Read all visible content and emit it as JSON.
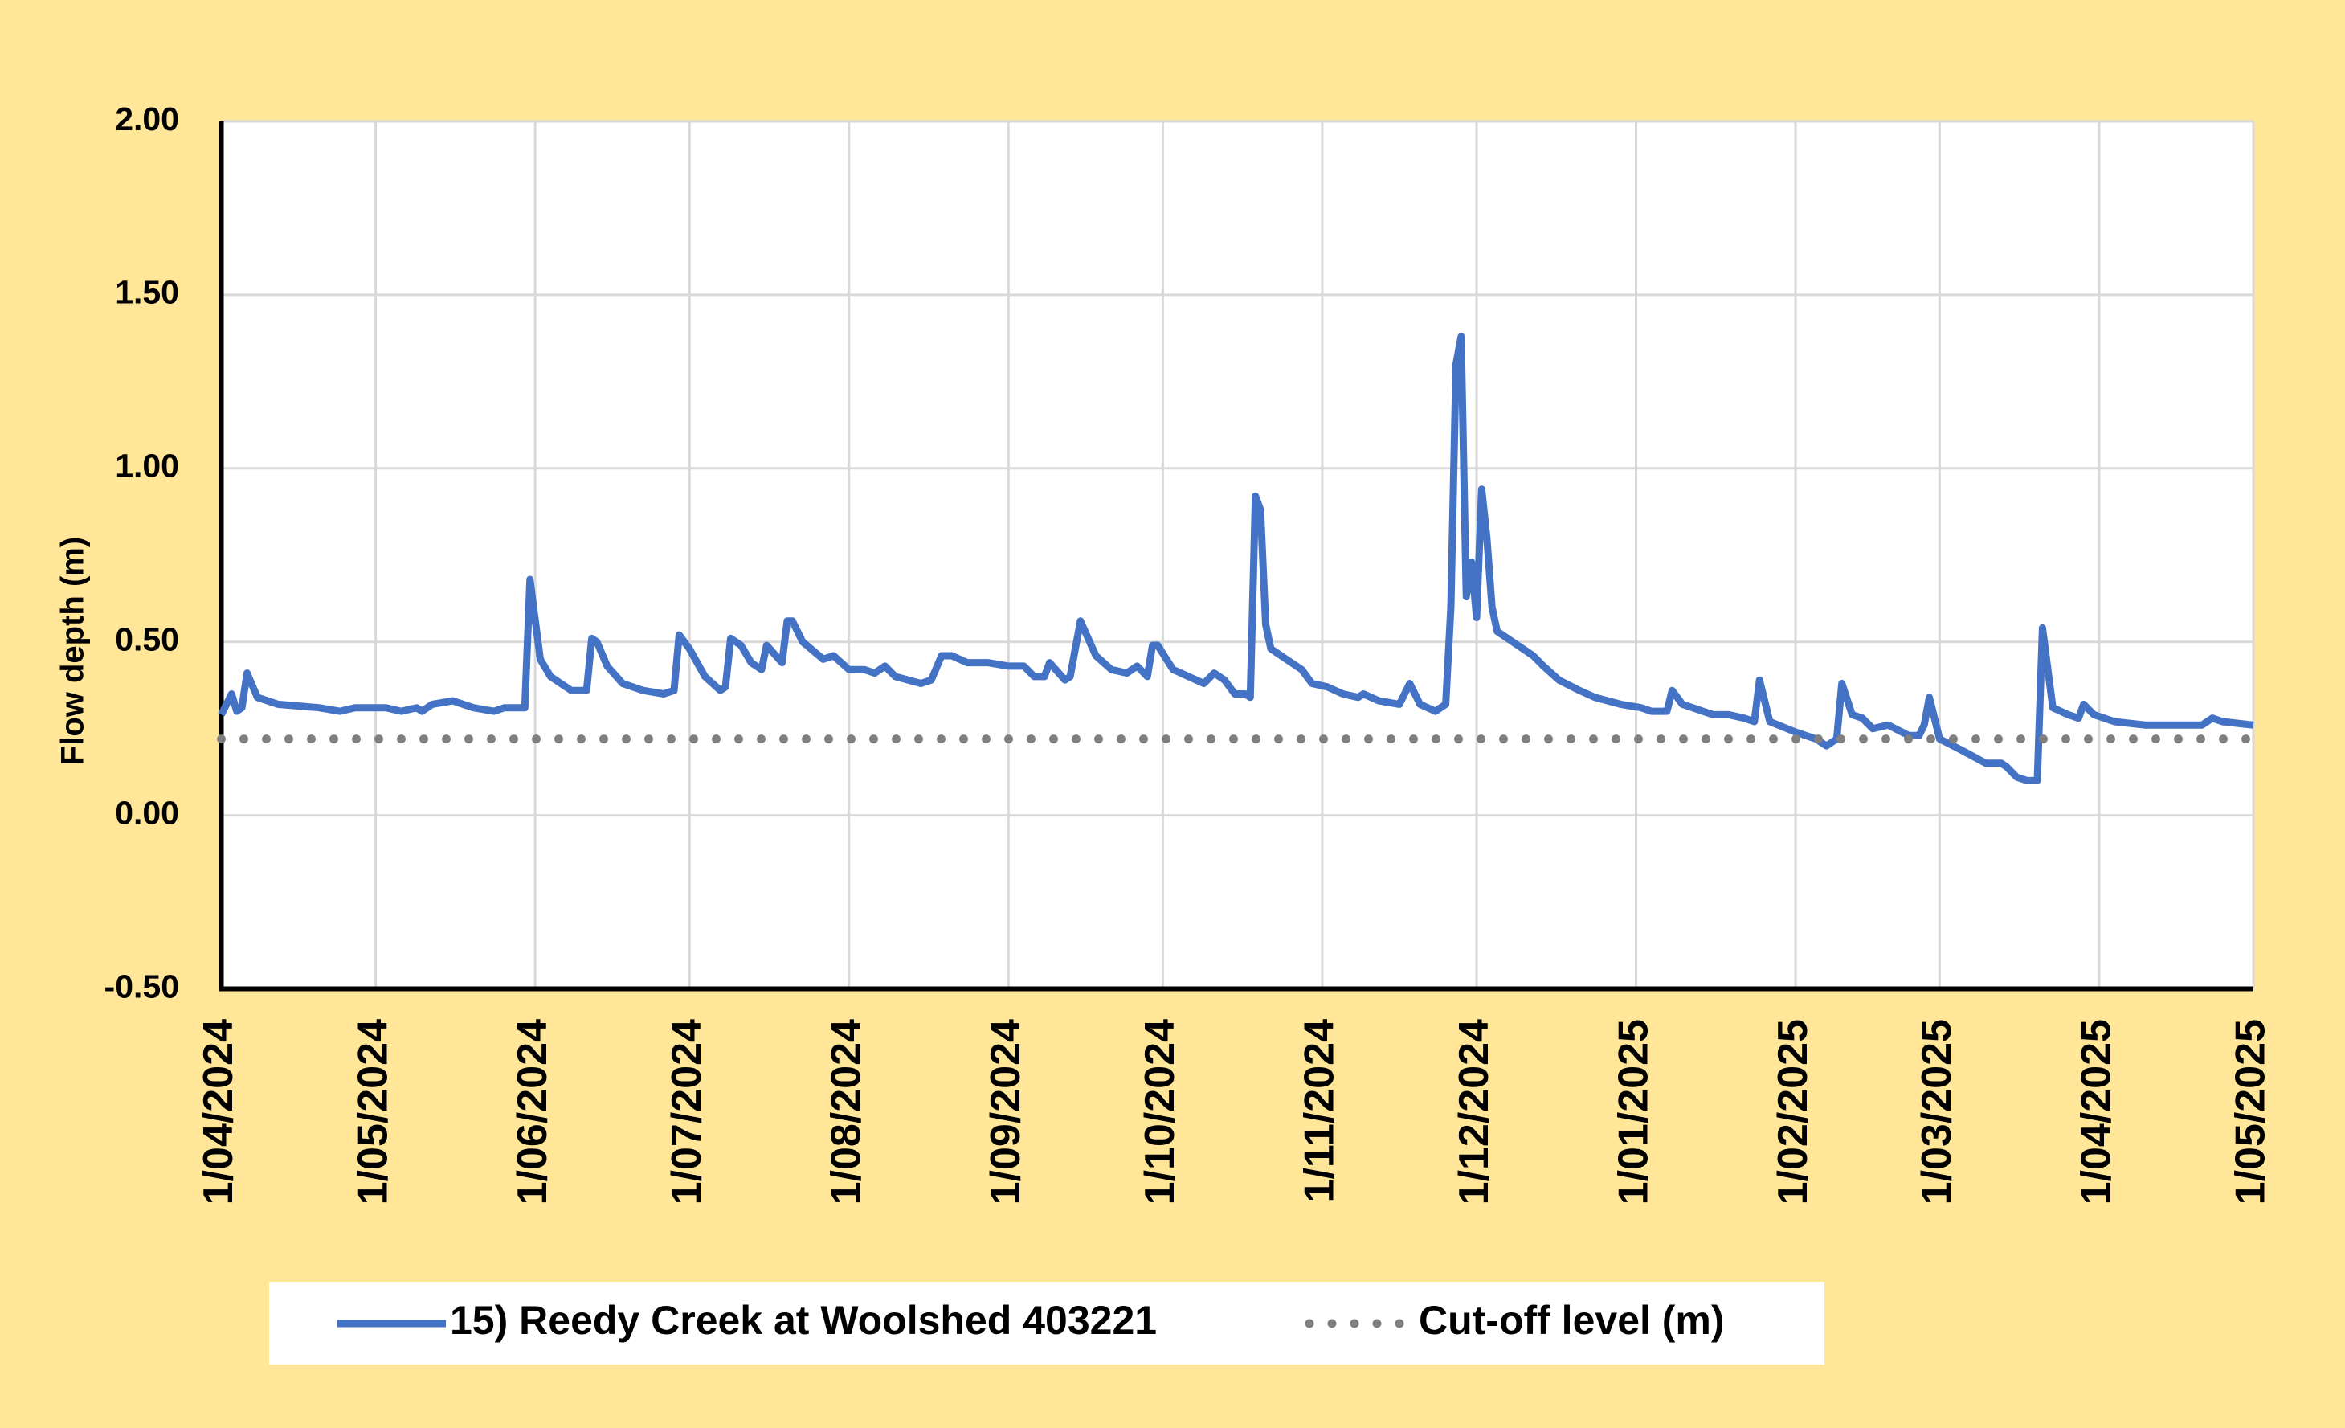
{
  "chart_data": {
    "type": "line",
    "y_label": "Flow depth (m)",
    "ylim": [
      -0.5,
      2
    ],
    "yticks": [
      {
        "value": -0.5,
        "label": "-0.50"
      },
      {
        "value": 0,
        "label": "0.00"
      },
      {
        "value": 0.5,
        "label": "0.50"
      },
      {
        "value": 1,
        "label": "1.00"
      },
      {
        "value": 1.5,
        "label": "1.50"
      },
      {
        "value": 2,
        "label": "2.00"
      }
    ],
    "xlim": [
      "2024-04-01",
      "2025-05-01"
    ],
    "xticks": [
      {
        "value": "2024-04-01",
        "label": "1/04/2024"
      },
      {
        "value": "2024-05-01",
        "label": "1/05/2024"
      },
      {
        "value": "2024-06-01",
        "label": "1/06/2024"
      },
      {
        "value": "2024-07-01",
        "label": "1/07/2024"
      },
      {
        "value": "2024-08-01",
        "label": "1/08/2024"
      },
      {
        "value": "2024-09-01",
        "label": "1/09/2024"
      },
      {
        "value": "2024-10-01",
        "label": "1/10/2024"
      },
      {
        "value": "2024-11-01",
        "label": "1/11/2024"
      },
      {
        "value": "2024-12-01",
        "label": "1/12/2024"
      },
      {
        "value": "2025-01-01",
        "label": "1/01/2025"
      },
      {
        "value": "2025-02-01",
        "label": "1/02/2025"
      },
      {
        "value": "2025-03-01",
        "label": "1/03/2025"
      },
      {
        "value": "2025-04-01",
        "label": "1/04/2025"
      },
      {
        "value": "2025-05-01",
        "label": "1/05/2025"
      }
    ],
    "grid": true,
    "legend": "bottom",
    "series": [
      {
        "name": "15) Reedy Creek at Woolshed 403221",
        "color": "#4472c4",
        "style": "solid",
        "x": [
          "2024-04-01",
          "2024-04-03",
          "2024-04-04",
          "2024-04-05",
          "2024-04-06",
          "2024-04-08",
          "2024-04-12",
          "2024-04-20",
          "2024-04-24",
          "2024-04-27",
          "2024-05-03",
          "2024-05-06",
          "2024-05-09",
          "2024-05-10",
          "2024-05-12",
          "2024-05-16",
          "2024-05-20",
          "2024-05-24",
          "2024-05-26",
          "2024-05-30",
          "2024-05-31",
          "2024-06-02",
          "2024-06-04",
          "2024-06-08",
          "2024-06-11",
          "2024-06-12",
          "2024-06-13",
          "2024-06-15",
          "2024-06-18",
          "2024-06-22",
          "2024-06-26",
          "2024-06-28",
          "2024-06-29",
          "2024-07-01",
          "2024-07-04",
          "2024-07-07",
          "2024-07-08",
          "2024-07-09",
          "2024-07-11",
          "2024-07-13",
          "2024-07-15",
          "2024-07-16",
          "2024-07-19",
          "2024-07-20",
          "2024-07-21",
          "2024-07-23",
          "2024-07-27",
          "2024-07-29",
          "2024-08-01",
          "2024-08-04",
          "2024-08-06",
          "2024-08-08",
          "2024-08-10",
          "2024-08-15",
          "2024-08-17",
          "2024-08-19",
          "2024-08-21",
          "2024-08-24",
          "2024-08-28",
          "2024-09-01",
          "2024-09-04",
          "2024-09-06",
          "2024-09-08",
          "2024-09-09",
          "2024-09-12",
          "2024-09-13",
          "2024-09-15",
          "2024-09-18",
          "2024-09-21",
          "2024-09-24",
          "2024-09-26",
          "2024-09-28",
          "2024-09-29",
          "2024-09-30",
          "2024-10-03",
          "2024-10-06",
          "2024-10-09",
          "2024-10-11",
          "2024-10-13",
          "2024-10-15",
          "2024-10-17",
          "2024-10-18",
          "2024-10-19",
          "2024-10-20",
          "2024-10-21",
          "2024-10-22",
          "2024-10-25",
          "2024-10-28",
          "2024-10-30",
          "2024-11-02",
          "2024-11-05",
          "2024-11-08",
          "2024-11-09",
          "2024-11-12",
          "2024-11-16",
          "2024-11-18",
          "2024-11-20",
          "2024-11-23",
          "2024-11-25",
          "2024-11-26",
          "2024-11-27",
          "2024-11-28",
          "2024-11-29",
          "2024-11-30",
          "2024-12-01",
          "2024-12-02",
          "2024-12-03",
          "2024-12-04",
          "2024-12-05",
          "2024-12-09",
          "2024-12-12",
          "2024-12-14",
          "2024-12-17",
          "2024-12-21",
          "2024-12-24",
          "2024-12-29",
          "2025-01-02",
          "2025-01-04",
          "2025-01-07",
          "2025-01-08",
          "2025-01-10",
          "2025-01-14",
          "2025-01-16",
          "2025-01-19",
          "2025-01-22",
          "2025-01-24",
          "2025-01-25",
          "2025-01-27",
          "2025-02-01",
          "2025-02-05",
          "2025-02-07",
          "2025-02-09",
          "2025-02-10",
          "2025-02-12",
          "2025-02-14",
          "2025-02-16",
          "2025-02-19",
          "2025-02-23",
          "2025-02-25",
          "2025-02-26",
          "2025-02-27",
          "2025-03-01",
          "2025-03-05",
          "2025-03-10",
          "2025-03-13",
          "2025-03-14",
          "2025-03-16",
          "2025-03-18",
          "2025-03-20",
          "2025-03-21",
          "2025-03-23",
          "2025-03-26",
          "2025-03-28",
          "2025-03-29",
          "2025-03-31",
          "2025-04-04",
          "2025-04-10",
          "2025-04-18",
          "2025-04-21",
          "2025-04-23",
          "2025-04-25",
          "2025-05-01"
        ],
        "values": [
          0.29,
          0.35,
          0.3,
          0.31,
          0.41,
          0.34,
          0.32,
          0.31,
          0.3,
          0.31,
          0.31,
          0.3,
          0.31,
          0.3,
          0.32,
          0.33,
          0.31,
          0.3,
          0.31,
          0.31,
          0.68,
          0.45,
          0.4,
          0.36,
          0.36,
          0.51,
          0.5,
          0.43,
          0.38,
          0.36,
          0.35,
          0.36,
          0.52,
          0.48,
          0.4,
          0.36,
          0.37,
          0.51,
          0.49,
          0.44,
          0.42,
          0.49,
          0.44,
          0.56,
          0.56,
          0.5,
          0.45,
          0.46,
          0.42,
          0.42,
          0.41,
          0.43,
          0.4,
          0.38,
          0.39,
          0.46,
          0.46,
          0.44,
          0.44,
          0.43,
          0.43,
          0.4,
          0.4,
          0.44,
          0.39,
          0.4,
          0.56,
          0.46,
          0.42,
          0.41,
          0.43,
          0.4,
          0.49,
          0.49,
          0.42,
          0.4,
          0.38,
          0.41,
          0.39,
          0.35,
          0.35,
          0.34,
          0.92,
          0.88,
          0.55,
          0.48,
          0.45,
          0.42,
          0.38,
          0.37,
          0.35,
          0.34,
          0.35,
          0.33,
          0.32,
          0.38,
          0.32,
          0.3,
          0.32,
          0.6,
          1.3,
          1.38,
          0.63,
          0.73,
          0.57,
          0.94,
          0.8,
          0.6,
          0.53,
          0.49,
          0.46,
          0.43,
          0.39,
          0.36,
          0.34,
          0.32,
          0.31,
          0.3,
          0.3,
          0.36,
          0.32,
          0.3,
          0.29,
          0.29,
          0.28,
          0.27,
          0.39,
          0.27,
          0.24,
          0.22,
          0.2,
          0.22,
          0.38,
          0.29,
          0.28,
          0.25,
          0.26,
          0.23,
          0.23,
          0.26,
          0.34,
          0.22,
          0.19,
          0.15,
          0.15,
          0.14,
          0.11,
          0.1,
          0.1,
          0.54,
          0.31,
          0.29,
          0.28,
          0.32,
          0.29,
          0.27,
          0.26,
          0.26,
          0.26,
          0.28,
          0.27,
          0.26
        ]
      },
      {
        "name": "Cut-off level (m)",
        "color": "#808080",
        "style": "dotted",
        "x": [
          "2024-04-01",
          "2025-05-01"
        ],
        "values": [
          0.22,
          0.22
        ]
      }
    ]
  }
}
